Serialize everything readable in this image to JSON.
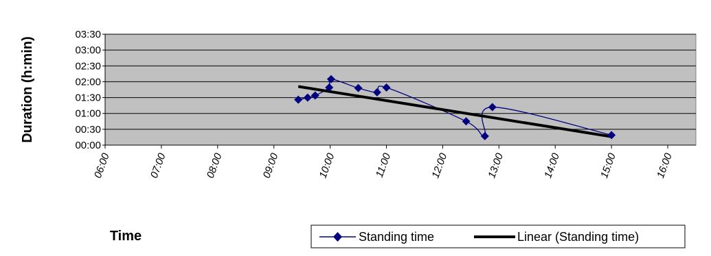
{
  "chart_data": {
    "type": "line",
    "ylabel": "Duration (h:min)",
    "xlabel": "Time",
    "x_ticks": [
      "06:00",
      "07:00",
      "08:00",
      "09:00",
      "10:00",
      "11:00",
      "12:00",
      "13:00",
      "14:00",
      "15:00",
      "16:00"
    ],
    "y_ticks": [
      "00:00",
      "00:30",
      "01:00",
      "01:30",
      "02:00",
      "02:30",
      "03:00",
      "03:30"
    ],
    "xlim": [
      "06:00",
      "16:30"
    ],
    "ylim": [
      "00:00",
      "03:30"
    ],
    "grid": "horizontal",
    "legend_position": "bottom-right",
    "series": [
      {
        "name": "Standing time",
        "color": "#000080",
        "marker": "diamond",
        "x": [
          "09:26",
          "09:36",
          "09:44",
          "09:59",
          "10:01",
          "10:30",
          "10:50",
          "11:00",
          "12:25",
          "12:45",
          "12:53",
          "15:00"
        ],
        "y": [
          "01:26",
          "01:30",
          "01:34",
          "01:49",
          "02:05",
          "01:48",
          "01:40",
          "01:49",
          "00:45",
          "00:17",
          "01:12",
          "00:19"
        ]
      },
      {
        "name": "Linear (Standing time)",
        "color": "#000000",
        "type": "trendline",
        "x": [
          "09:26",
          "15:00"
        ],
        "y": [
          "01:51",
          "00:16"
        ]
      }
    ]
  }
}
